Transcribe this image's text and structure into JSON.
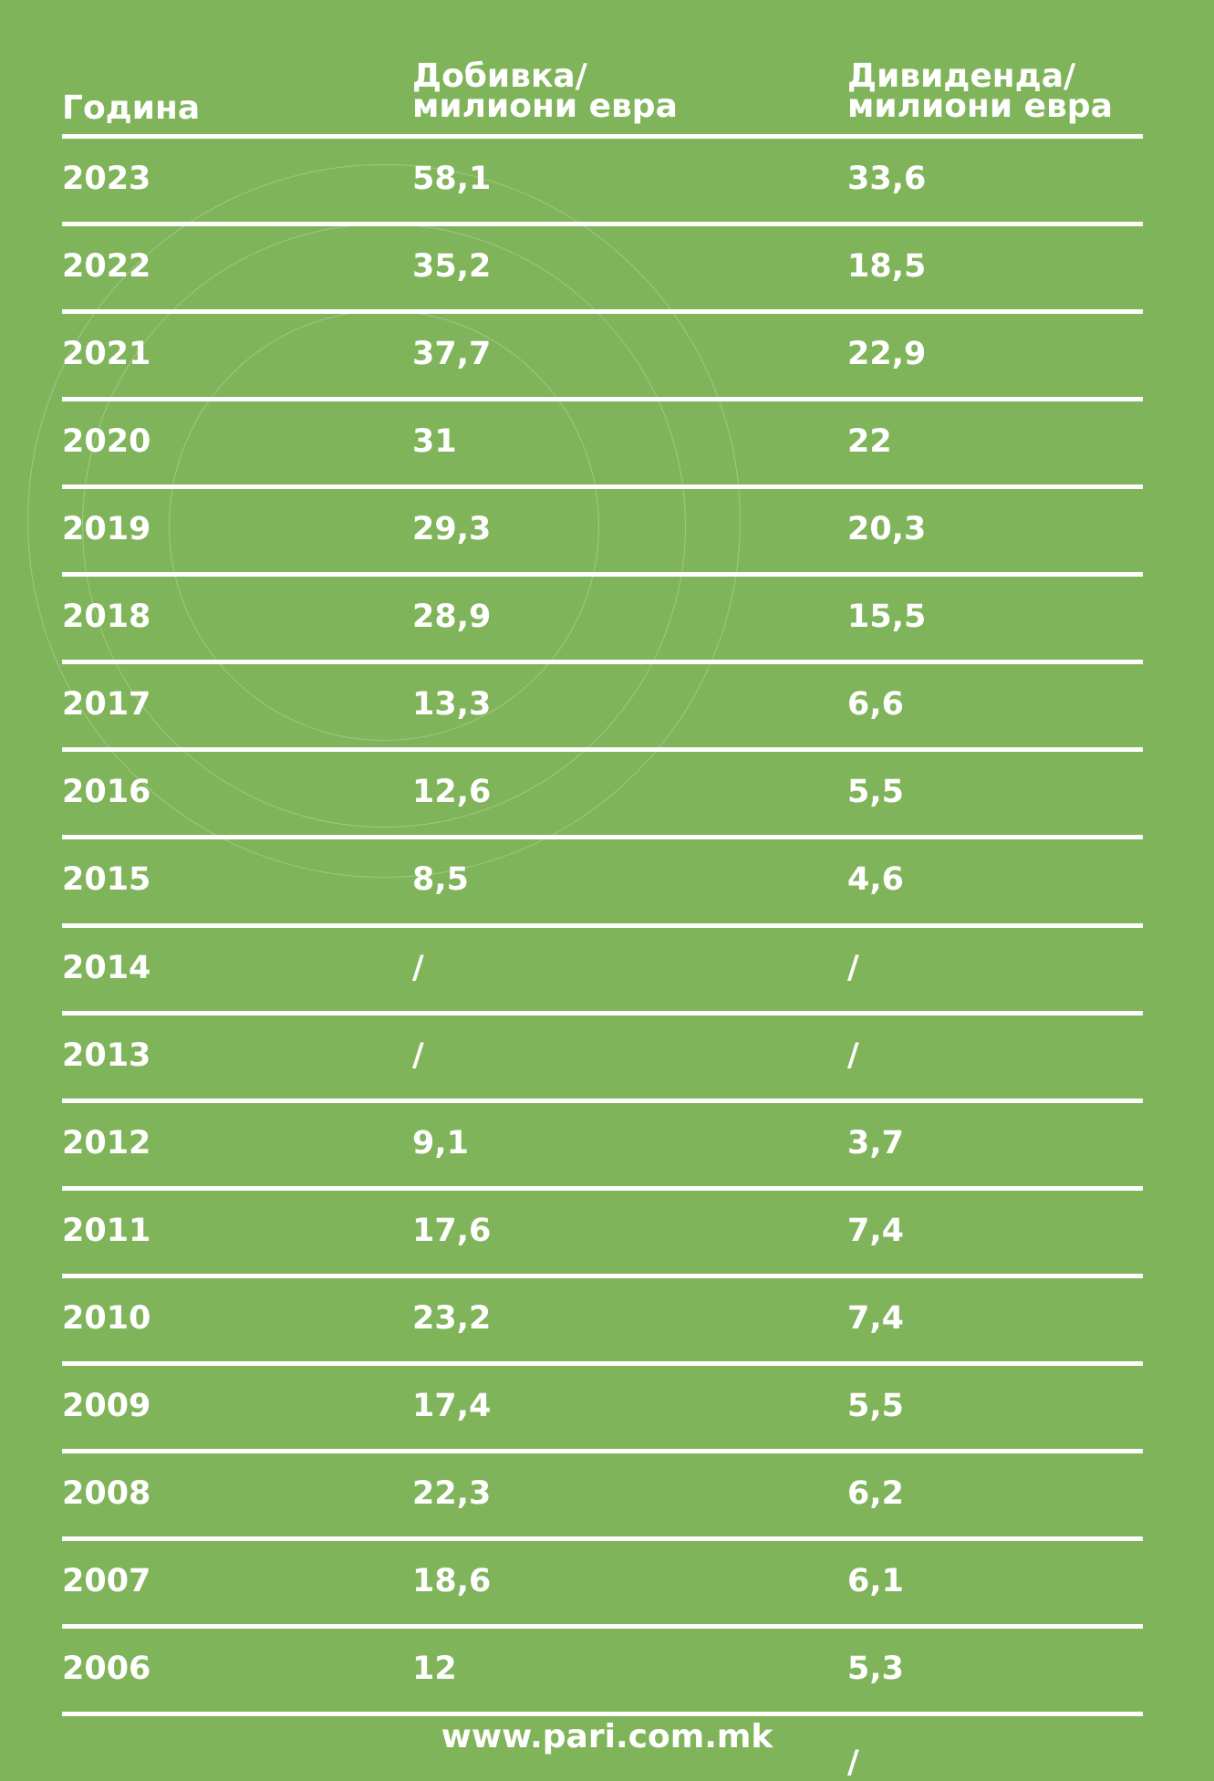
{
  "table": {
    "header": [
      [
        "Година"
      ],
      [
        "Добивка/",
        "милиони евра"
      ],
      [
        "Дивиденда/",
        "милиони евра"
      ]
    ],
    "rows": [
      [
        "2023",
        "58,1",
        "33,6"
      ],
      [
        "2022",
        "35,2",
        "18,5"
      ],
      [
        "2021",
        "37,7",
        "22,9"
      ],
      [
        "2020",
        "31",
        "22"
      ],
      [
        "2019",
        "29,3",
        "20,3"
      ],
      [
        "2018",
        "28,9",
        "15,5"
      ],
      [
        "2017",
        "13,3",
        "6,6"
      ],
      [
        "2016",
        "12,6",
        "5,5"
      ],
      [
        "2015",
        "8,5",
        "4,6"
      ],
      [
        "2014",
        "/",
        "/"
      ],
      [
        "2013",
        "/",
        "/"
      ],
      [
        "2012",
        "9,1",
        "3,7"
      ],
      [
        "2011",
        "17,6",
        "7,4"
      ],
      [
        "2010",
        "23,2",
        "7,4"
      ],
      [
        "2009",
        "17,4",
        "5,5"
      ],
      [
        "2008",
        "22,3",
        "6,2"
      ],
      [
        "2007",
        "18,6",
        "6,1"
      ],
      [
        "2006",
        "12",
        "5,3"
      ]
    ],
    "overflow_text": "/"
  },
  "footer": "www.pari.com.mk"
}
